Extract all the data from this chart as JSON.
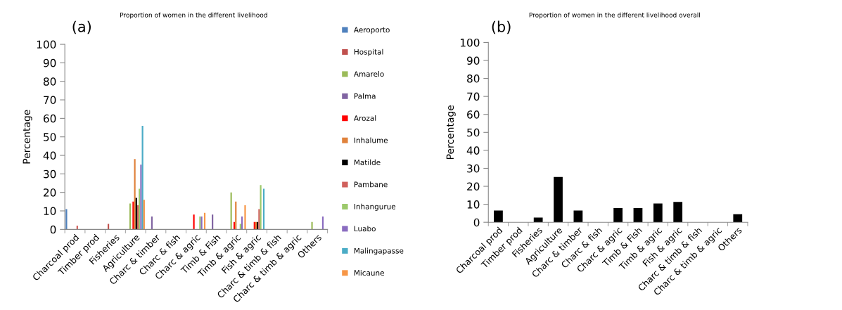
{
  "chart_data": [
    {
      "type": "bar",
      "title": "Proportion of women in the different livelihood",
      "ylabel": "Percentage",
      "annotations": [
        "(a)"
      ],
      "categories": [
        "Charcoal prod",
        "Timber prod",
        "Fisheries",
        "Agriculture",
        "Charc & timber",
        "Charc & fish",
        "Charc & agric",
        "Timb & Fish",
        "Timb & agric",
        "Fish & agric",
        "Charc & timb & fish",
        "Charc & timb & agric",
        "Others"
      ],
      "series": [
        {
          "name": "Aeroporto",
          "color": "#4f81bd",
          "values": [
            11,
            0,
            0,
            0,
            0,
            0,
            0,
            0,
            0,
            0,
            0,
            0,
            0
          ]
        },
        {
          "name": "Hospital",
          "color": "#c0504d",
          "values": [
            0,
            0,
            3,
            0,
            0,
            0,
            0,
            0,
            0,
            0,
            0,
            0,
            0
          ]
        },
        {
          "name": "Amarelo",
          "color": "#9bbb59",
          "values": [
            0,
            0,
            0,
            14,
            0,
            0,
            0,
            0,
            20,
            0,
            0,
            0,
            4
          ]
        },
        {
          "name": "Palma",
          "color": "#8064a2",
          "values": [
            0,
            0,
            0,
            0,
            7,
            0,
            0,
            8,
            0,
            0,
            0,
            0,
            0
          ]
        },
        {
          "name": "Arozal",
          "color": "#ff0000",
          "values": [
            0,
            0,
            0,
            15,
            0,
            0,
            8,
            0,
            4,
            4,
            0,
            0,
            0
          ]
        },
        {
          "name": "Inhalume",
          "color": "#e0823c",
          "values": [
            0,
            0,
            0,
            38,
            0,
            0,
            0,
            0,
            15,
            4,
            0,
            0,
            0
          ]
        },
        {
          "name": "Matilde",
          "color": "#000000",
          "values": [
            0,
            0,
            0,
            17,
            0,
            0,
            0,
            0,
            0,
            4,
            0,
            0,
            0
          ]
        },
        {
          "name": "Pambane",
          "color": "#d0605c",
          "values": [
            2,
            0,
            0,
            13,
            0,
            0,
            0,
            0,
            0,
            11,
            0,
            0,
            0
          ]
        },
        {
          "name": "Inhangurue",
          "color": "#9cc96b",
          "values": [
            0,
            0,
            0,
            22,
            0,
            0,
            7,
            0,
            3,
            24,
            0,
            0,
            0
          ]
        },
        {
          "name": "Luabo",
          "color": "#8a6cc0",
          "values": [
            0,
            0,
            0,
            35,
            0,
            0,
            7,
            0,
            7,
            0,
            0,
            0,
            7
          ]
        },
        {
          "name": "Malingapasse",
          "color": "#4bacc6",
          "values": [
            0,
            0,
            0,
            56,
            0,
            0,
            0,
            0,
            0,
            22,
            0,
            0,
            0
          ]
        },
        {
          "name": "Micaune",
          "color": "#f79646",
          "values": [
            0,
            0,
            0,
            16,
            0,
            0,
            9,
            0,
            13,
            0,
            0,
            0,
            0
          ]
        }
      ],
      "ylim": [
        0,
        100
      ],
      "yticks": [
        0,
        10,
        20,
        30,
        40,
        50,
        60,
        70,
        80,
        90,
        100
      ],
      "legend": "right"
    },
    {
      "type": "bar",
      "title": "Proportion of women in the different livelihood overall",
      "ylabel": "Percentage",
      "annotations": [
        "(b)"
      ],
      "categories": [
        "Charcoal prod",
        "Timber prod",
        "Fisheries",
        "Agriculture",
        "Charc & timber",
        "Charc & fish",
        "Charc & agric",
        "Timb & Fish",
        "Timb & agric",
        "Fish & agric",
        "Charc & timb & fish",
        "Charc & timb & agric",
        "Others"
      ],
      "series": [
        {
          "color": "#000000",
          "values": [
            6.5,
            0,
            2.6,
            25.2,
            6.5,
            0,
            7.9,
            7.9,
            10.4,
            11.3,
            0,
            0,
            4.5
          ]
        }
      ],
      "ylim": [
        0,
        100
      ],
      "yticks": [
        0,
        10,
        20,
        30,
        40,
        50,
        60,
        70,
        80,
        90,
        100
      ]
    }
  ]
}
